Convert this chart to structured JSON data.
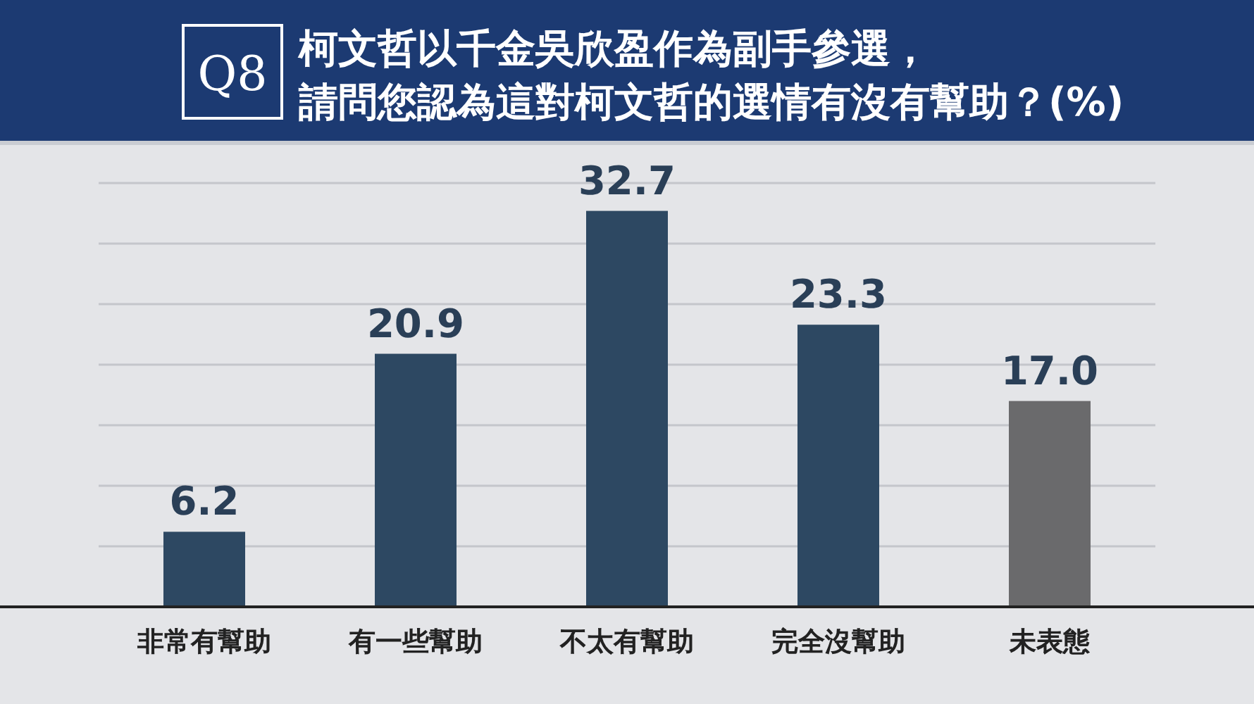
{
  "chart_data": {
    "type": "bar",
    "title": "柯文哲以千金吳欣盈作為副手參選，請問您認為這對柯文哲的選情有沒有幫助？(%)",
    "annotations": [
      "Q8"
    ],
    "categories": [
      "非常有幫助",
      "有一些幫助",
      "不太有幫助",
      "完全沒幫助",
      "未表態"
    ],
    "values": [
      6.2,
      20.9,
      32.7,
      23.3,
      17.0
    ],
    "colors": [
      "#2d4862",
      "#2d4862",
      "#2d4862",
      "#2d4862",
      "#6a6a6c"
    ],
    "value_labels": [
      "6.2",
      "20.9",
      "32.7",
      "23.3",
      "17.0"
    ],
    "ylim": [
      0,
      35
    ],
    "yticks": [
      {
        "value": 5,
        "label": null
      },
      {
        "value": 10,
        "label": null
      },
      {
        "value": 15,
        "label": null
      },
      {
        "value": 20,
        "label": null
      },
      {
        "value": 25,
        "label": null
      },
      {
        "value": 30,
        "label": null
      },
      {
        "value": 35,
        "label": null
      }
    ],
    "tick_labels": "x",
    "grid": "y"
  }
}
